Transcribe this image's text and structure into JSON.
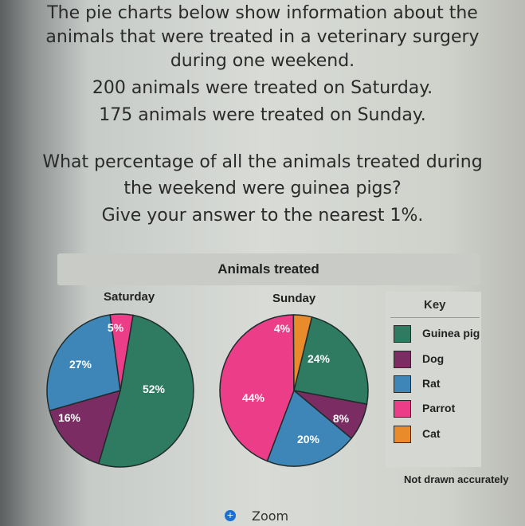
{
  "question": {
    "lines": [
      "The pie charts below show information about the",
      "animals that were treated in a veterinary surgery",
      "during one weekend.",
      "200 animals were treated on Saturday.",
      "175 animals were treated on Sunday.",
      "What percentage of all the animals treated during",
      "the weekend were guinea pigs?",
      "Give your answer to the nearest 1%."
    ]
  },
  "colors": {
    "guinea_pig": "#2e7b62",
    "dog": "#7b2d63",
    "rat": "#3f86b8",
    "parrot": "#ec3d89",
    "cat": "#e98a2b"
  },
  "chart_data": [
    {
      "type": "pie",
      "title": "Animals treated",
      "subtitle": "Saturday",
      "slices": [
        {
          "label": "Guinea pig",
          "value": 52,
          "text": "52%"
        },
        {
          "label": "Dog",
          "value": 16,
          "text": "16%"
        },
        {
          "label": "Rat",
          "value": 27,
          "text": "27%"
        },
        {
          "label": "Parrot",
          "value": 5,
          "text": "5%"
        }
      ]
    },
    {
      "type": "pie",
      "title": "Animals treated",
      "subtitle": "Sunday",
      "slices": [
        {
          "label": "Guinea pig",
          "value": 24,
          "text": "24%"
        },
        {
          "label": "Dog",
          "value": 8,
          "text": "8%"
        },
        {
          "label": "Rat",
          "value": 20,
          "text": "20%"
        },
        {
          "label": "Parrot",
          "value": 44,
          "text": "44%"
        },
        {
          "label": "Cat",
          "value": 4,
          "text": "4%"
        }
      ]
    }
  ],
  "key": {
    "title": "Key",
    "items": [
      {
        "label": "Guinea pig",
        "color": "#2e7b62"
      },
      {
        "label": "Dog",
        "color": "#7b2d63"
      },
      {
        "label": "Rat",
        "color": "#3f86b8"
      },
      {
        "label": "Parrot",
        "color": "#ec3d89"
      },
      {
        "label": "Cat",
        "color": "#e98a2b"
      }
    ]
  },
  "note": "Not drawn accurately",
  "zoom": {
    "label": "Zoom",
    "icon": "plus-circle-icon"
  }
}
